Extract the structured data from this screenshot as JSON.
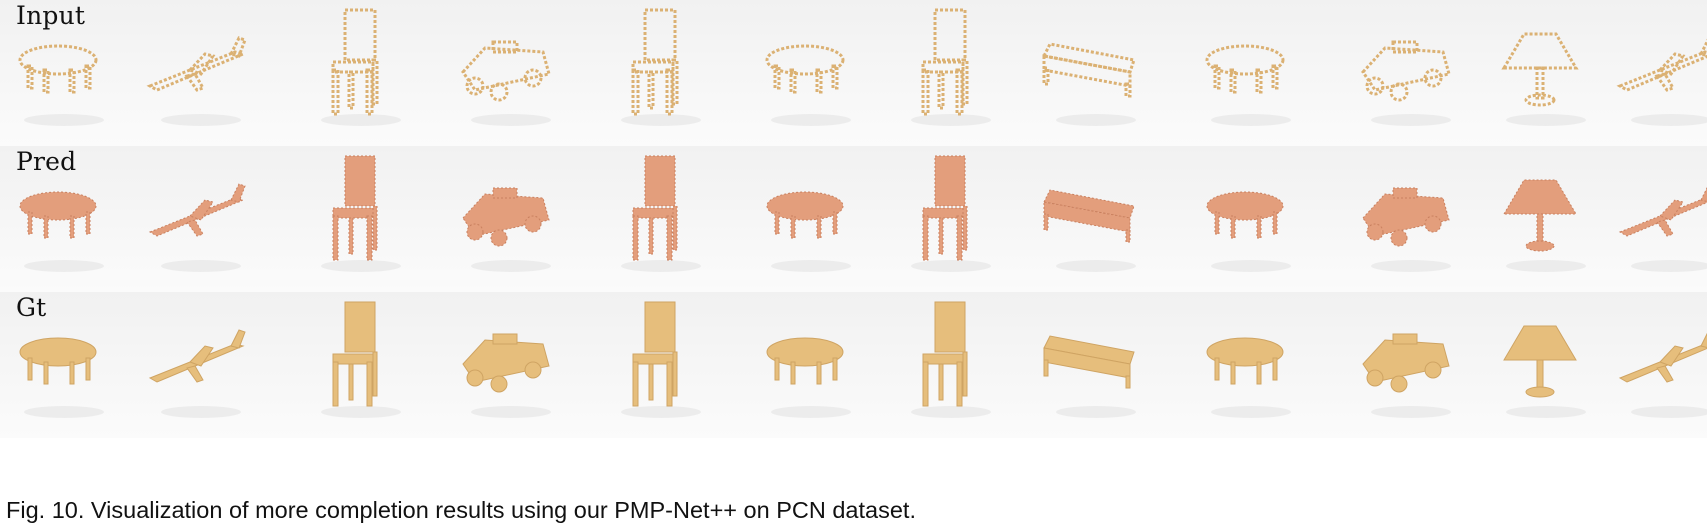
{
  "figure": {
    "rows": [
      {
        "label": "Input",
        "color": "#dbb173",
        "style": "sparse"
      },
      {
        "label": "Pred",
        "color": "#e39e7c",
        "style": "dense"
      },
      {
        "label": "Gt",
        "color": "#e6be7c",
        "style": "solid"
      }
    ],
    "objects": [
      "table",
      "airplane",
      "chair",
      "car",
      "chair",
      "table",
      "chair",
      "sofa",
      "table",
      "car",
      "lamp",
      "airplane"
    ]
  },
  "caption": "Fig. 10. Visualization of more completion results using our PMP-Net++ on PCN dataset."
}
